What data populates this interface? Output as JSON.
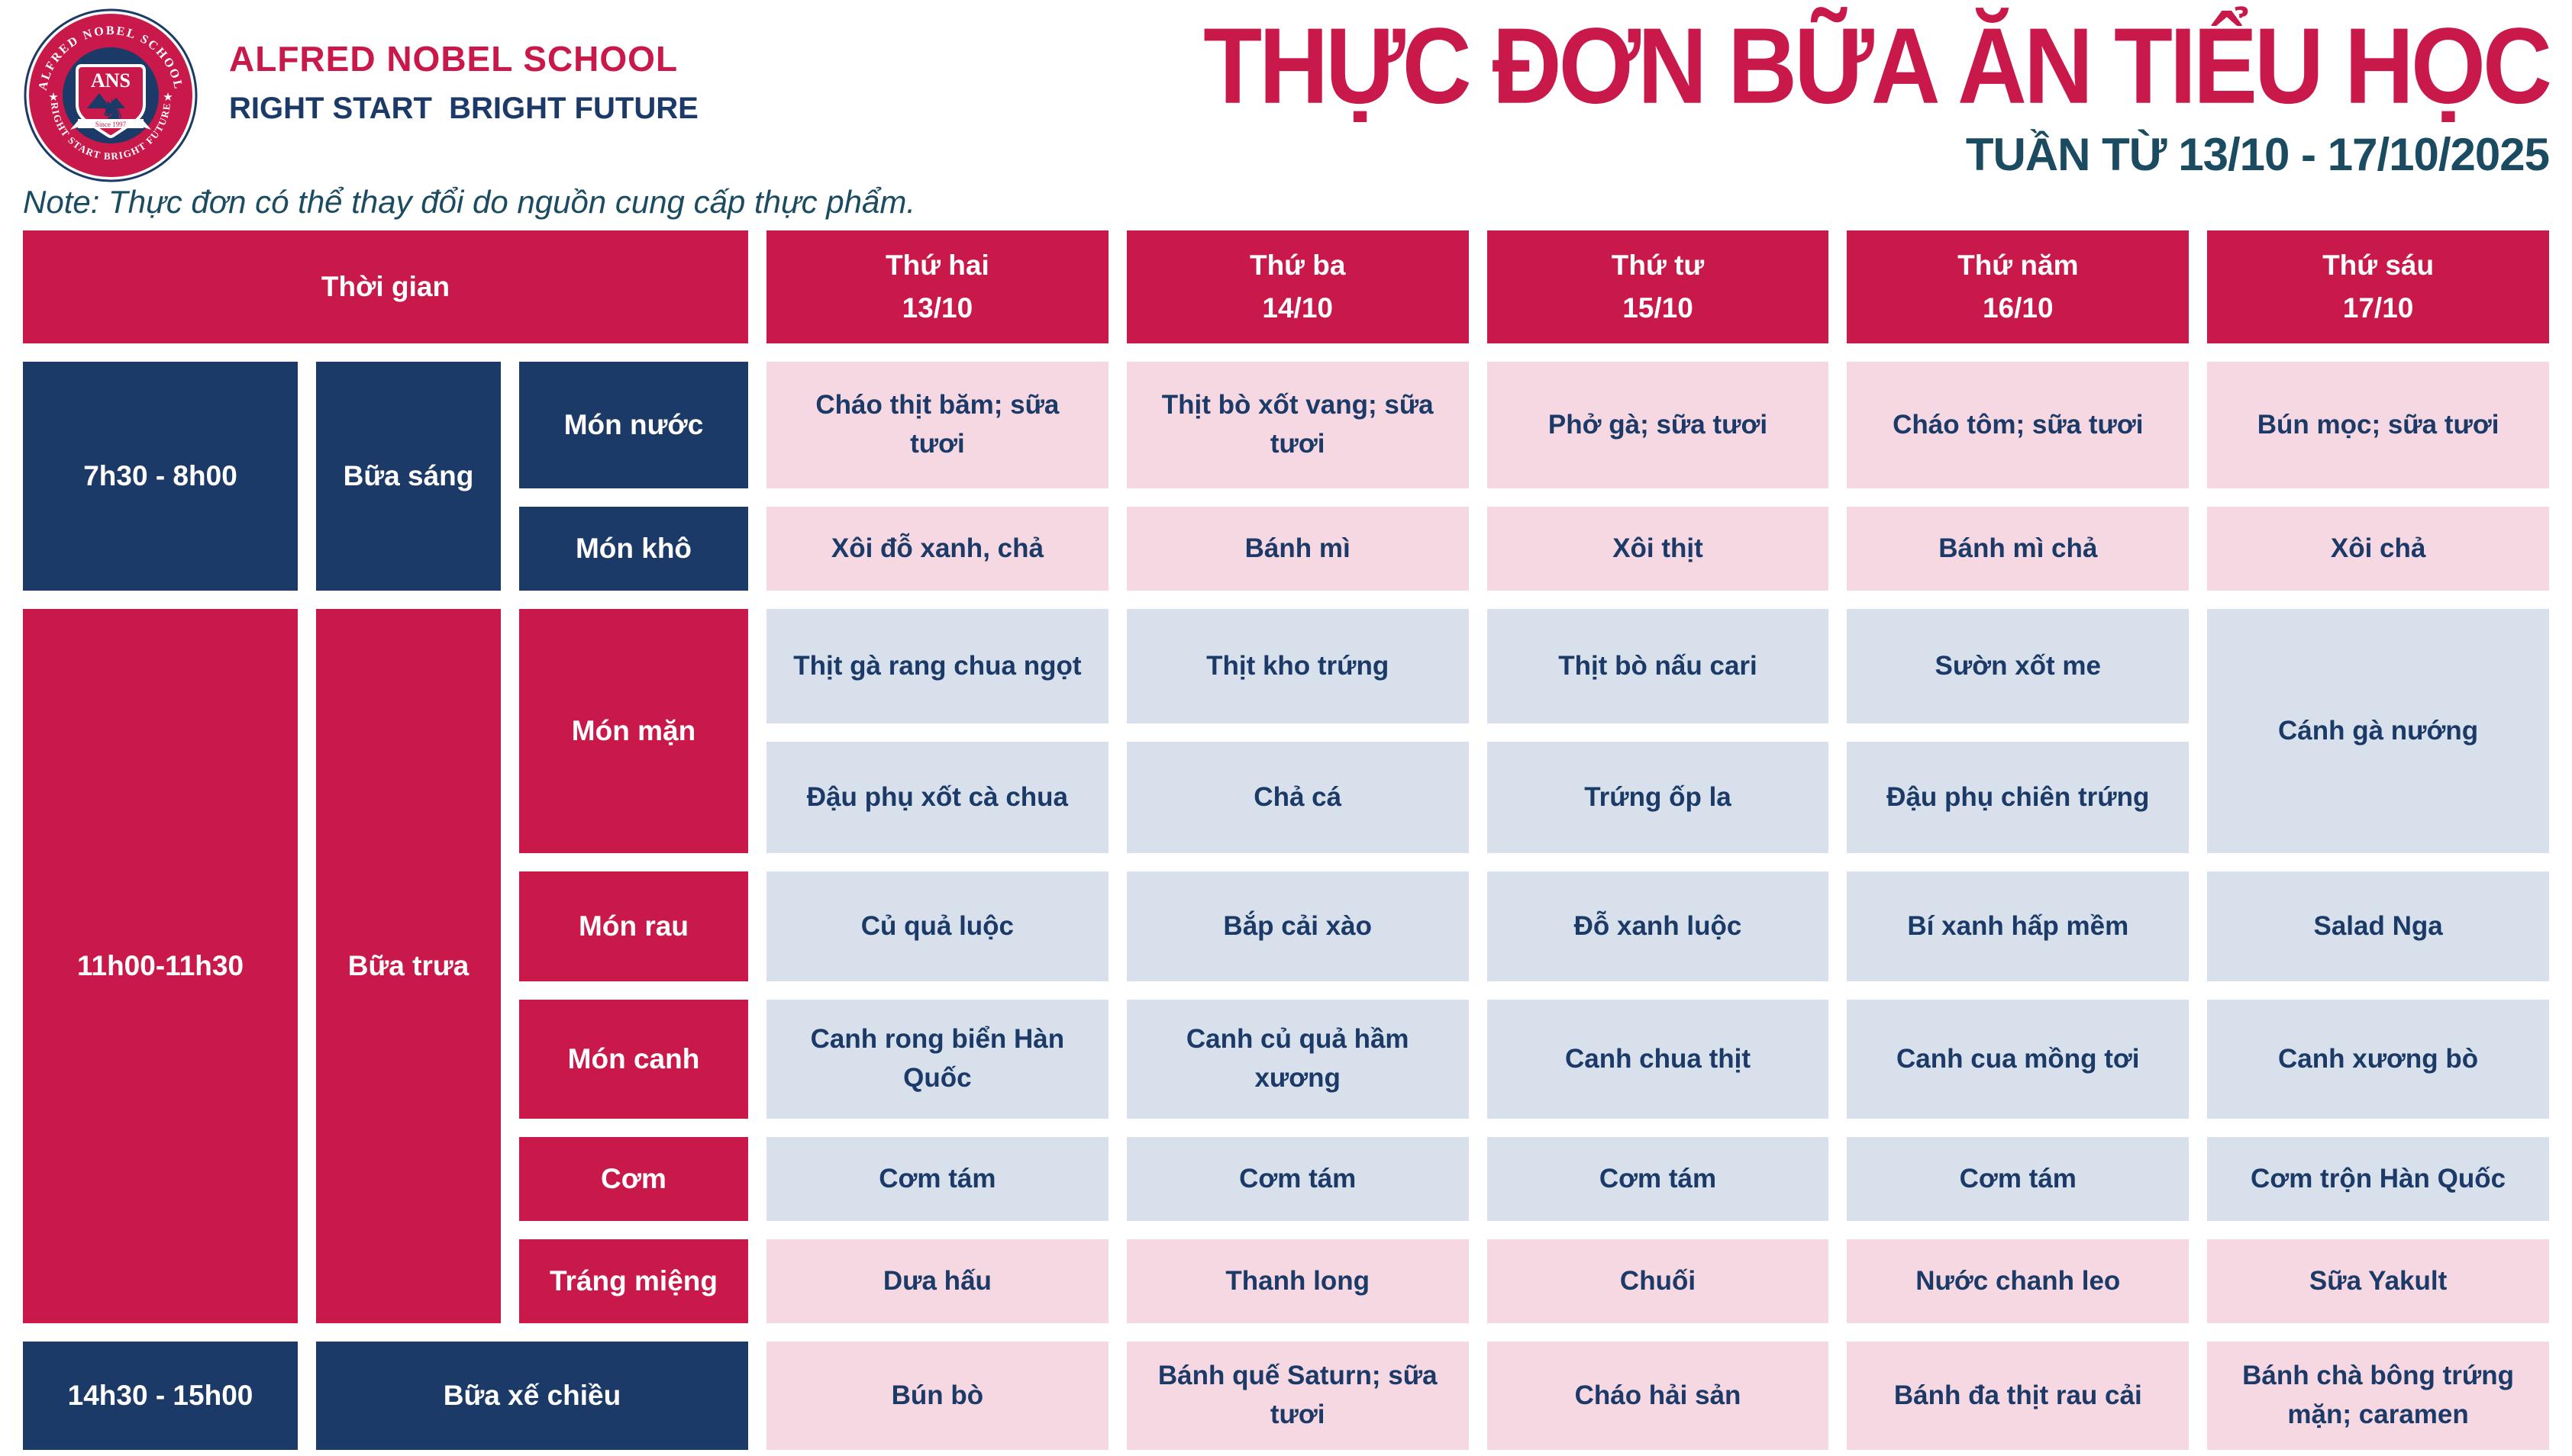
{
  "header": {
    "school_name": "ALFRED NOBEL SCHOOL",
    "tagline": "RIGHT START  BRIGHT FUTURE",
    "title": "THỰC ĐƠN BỮA ĂN TIỂU HỌC",
    "week": "TUẦN TỪ 13/10 - 17/10/2025",
    "logo": {
      "ring_top": "ALFRED NOBEL SCHOOL",
      "ring_bottom": "RIGHT START  BRIGHT FUTURE",
      "abbr": "ANS",
      "since": "Since 1997",
      "star": "★",
      "horse": "♞"
    }
  },
  "note": "Note: Thực đơn có thể thay đổi do nguồn cung cấp thực phẩm.",
  "table": {
    "corner_header": "Thời gian",
    "days": [
      {
        "name": "Thứ hai",
        "date": "13/10"
      },
      {
        "name": "Thứ ba",
        "date": "14/10"
      },
      {
        "name": "Thứ tư",
        "date": "15/10"
      },
      {
        "name": "Thứ năm",
        "date": "16/10"
      },
      {
        "name": "Thứ sáu",
        "date": "17/10"
      }
    ],
    "sections": [
      {
        "time": "7h30 - 8h00",
        "meal": "Bữa sáng",
        "label_style": "navy",
        "rows": [
          {
            "category": "Món nước",
            "cell_style": "pink",
            "cells": [
              "Cháo thịt băm; sữa tươi",
              "Thịt bò xốt vang; sữa tươi",
              "Phở gà; sữa tươi",
              "Cháo tôm; sữa tươi",
              "Bún mọc; sữa tươi"
            ]
          },
          {
            "category": "Món khô",
            "cell_style": "pink",
            "cells": [
              "Xôi đỗ xanh, chả",
              "Bánh mì",
              "Xôi thịt",
              "Bánh mì chả",
              "Xôi chả"
            ]
          }
        ]
      },
      {
        "time": "11h00-11h30",
        "meal": "Bữa trưa",
        "label_style": "crimson",
        "rows": [
          {
            "category": "Món mặn",
            "category_rowspan": 2,
            "cell_style": "blue",
            "cells": [
              "Thịt gà rang chua ngọt",
              "Thịt kho trứng",
              "Thịt bò nấu cari",
              "Sườn xốt me",
              {
                "text": "Cánh gà nướng",
                "rowspan": 2
              }
            ]
          },
          {
            "category": null,
            "cell_style": "blue",
            "cells": [
              "Đậu phụ xốt cà chua",
              "Chả cá",
              "Trứng ốp la",
              "Đậu phụ chiên trứng",
              null
            ]
          },
          {
            "category": "Món rau",
            "cell_style": "blue",
            "cells": [
              "Củ quả luộc",
              "Bắp cải xào",
              "Đỗ xanh luộc",
              "Bí xanh hấp mềm",
              "Salad Nga"
            ]
          },
          {
            "category": "Món canh",
            "cell_style": "blue",
            "cells": [
              "Canh rong biển Hàn Quốc",
              "Canh củ quả hầm xương",
              "Canh chua thịt",
              "Canh cua mồng tơi",
              "Canh xương bò"
            ]
          },
          {
            "category": "Cơm",
            "cell_style": "blue",
            "cells": [
              "Cơm tám",
              "Cơm tám",
              "Cơm tám",
              "Cơm tám",
              "Cơm trộn Hàn Quốc"
            ]
          },
          {
            "category": "Tráng miệng",
            "cell_style": "pink",
            "cells": [
              "Dưa hấu",
              "Thanh long",
              "Chuối",
              "Nước chanh leo",
              "Sữa Yakult"
            ]
          }
        ]
      },
      {
        "time": "14h30 - 15h00",
        "meal": "Bữa xế chiều",
        "label_style": "navy",
        "meal_spans_category": true,
        "rows": [
          {
            "category": null,
            "cell_style": "pink",
            "cells": [
              "Bún bò",
              "Bánh quế Saturn; sữa tươi",
              "Cháo hải sản",
              "Bánh đa thịt rau cải",
              "Bánh chà bông trứng mặn; caramen"
            ]
          }
        ]
      }
    ]
  },
  "colors": {
    "crimson": "#C8194A",
    "navy": "#1C3A67",
    "pink": "#F6D8E2",
    "light_blue": "#D8E1EB",
    "teal": "#1A4B61",
    "white": "#FFFFFF"
  }
}
